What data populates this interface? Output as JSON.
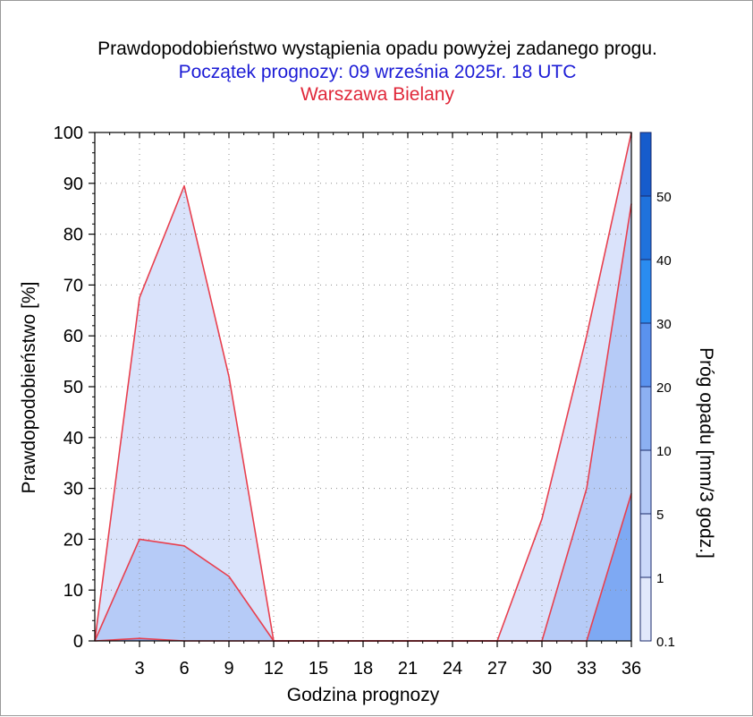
{
  "header": {
    "title": "Prawdopodobieństwo wystąpienia opadu powyżej zadanego progu.",
    "subtitle": "Początek prognozy: 09 września 2025r. 18 UTC",
    "station": "Warszawa Bielany"
  },
  "colors": {
    "title": "#000000",
    "subtitle": "#1c1cd6",
    "station": "#e0283a",
    "series_line": "#e8404f"
  },
  "chart_data": {
    "type": "area",
    "title": "Prawdopodobieństwo wystąpienia opadu powyżej zadanego progu.",
    "xlabel": "Godzina prognozy",
    "ylabel": "Prawdopodobieństwo [%]",
    "colorbar_label": "Próg opadu [mm/3 godz.]",
    "xlim": [
      0,
      36
    ],
    "ylim": [
      0,
      100
    ],
    "x_ticks": [
      3,
      6,
      9,
      12,
      15,
      18,
      21,
      24,
      27,
      30,
      33,
      36
    ],
    "x_tick_labels": [
      "3",
      "6",
      "9",
      "12",
      "15",
      "18",
      "21",
      "24",
      "27",
      "30",
      "33",
      "36"
    ],
    "y_ticks": [
      0,
      10,
      20,
      30,
      40,
      50,
      60,
      70,
      80,
      90,
      100
    ],
    "y_tick_labels": [
      "0",
      "10",
      "20",
      "30",
      "40",
      "50",
      "60",
      "70",
      "80",
      "90",
      "100"
    ],
    "grid": true,
    "x": [
      0,
      3,
      6,
      9,
      12,
      15,
      18,
      21,
      24,
      27,
      30,
      33,
      36
    ],
    "series": [
      {
        "threshold": 0.1,
        "color": "#dae3fb",
        "values": [
          0,
          67.5,
          89.5,
          52,
          0,
          0,
          0,
          0,
          0,
          0,
          24,
          60,
          100
        ]
      },
      {
        "threshold": 1,
        "color": "#b6cbf7",
        "values": [
          0,
          20,
          18.7,
          12.7,
          0,
          0,
          0,
          0,
          0,
          0,
          0,
          30,
          86
        ]
      },
      {
        "threshold": 5,
        "color": "#7ea9f3",
        "values": [
          0,
          0.5,
          0,
          0,
          0,
          0,
          0,
          0,
          0,
          0,
          0,
          0,
          29
        ]
      }
    ],
    "colorbar": {
      "levels": [
        0.1,
        1,
        5,
        10,
        20,
        30,
        40,
        50
      ],
      "labels": [
        "0.1",
        "1",
        "5",
        "10",
        "20",
        "30",
        "40",
        "50"
      ],
      "colors": [
        "#e1e8fb",
        "#cad8f9",
        "#b2c8f6",
        "#8cb0f2",
        "#5a92ee",
        "#2a8cf0",
        "#1f72dc",
        "#165ccc",
        "#0d3fae"
      ]
    }
  }
}
